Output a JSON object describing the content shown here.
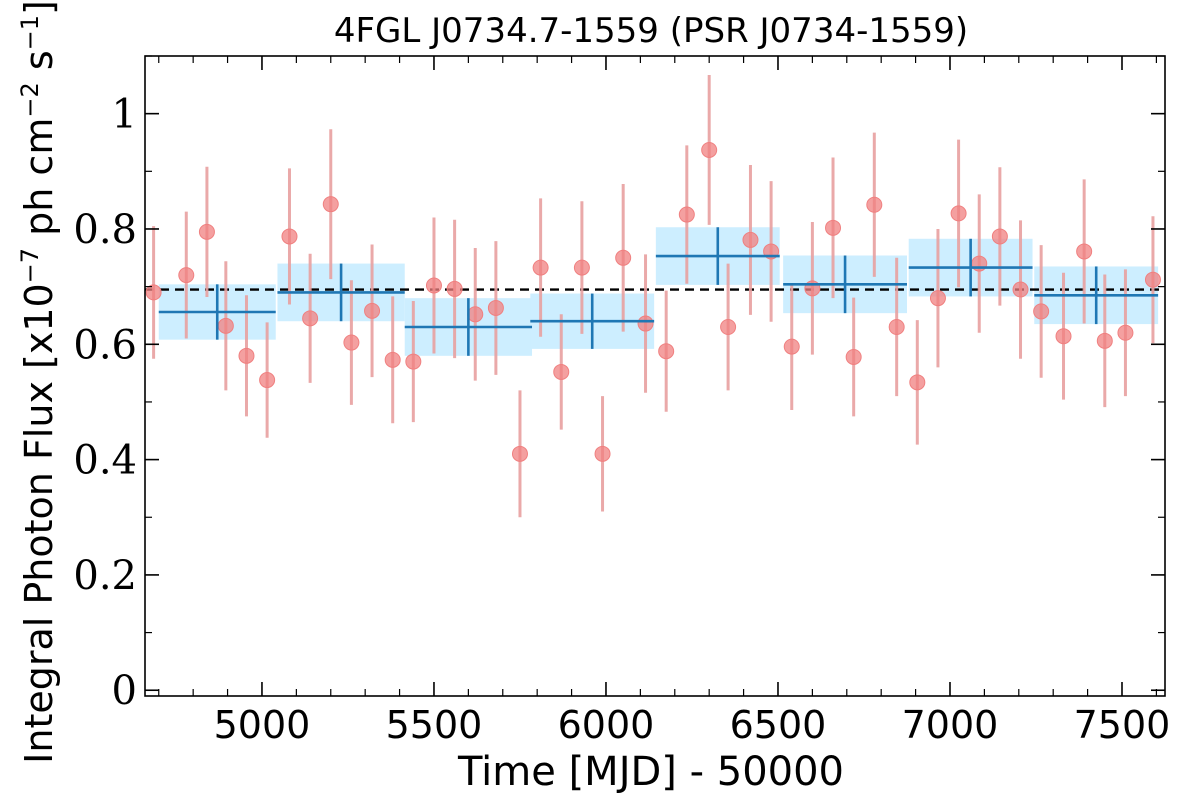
{
  "chart_data": {
    "type": "scatter",
    "title": "4FGL J0734.7-1559 (PSR J0734-1559)",
    "xlabel": "Time [MJD] - 50000",
    "ylabel_parts": {
      "prefix": "Integral Photon Flux [x10",
      "exp1": "−7",
      "mid": " ph cm",
      "exp2": "−2",
      "mid2": " s",
      "exp3": "−1",
      "suffix": "]"
    },
    "xlim": [
      4660,
      7625
    ],
    "ylim": [
      -0.01,
      1.1
    ],
    "xticks": [
      5000,
      5500,
      6000,
      6500,
      7000,
      7500
    ],
    "xtick_labels": [
      "5000",
      "5500",
      "6000",
      "6500",
      "7000",
      "7500"
    ],
    "yticks": [
      0,
      0.2,
      0.4,
      0.6,
      0.8,
      1.0
    ],
    "ytick_labels": [
      "0",
      "0.2",
      "0.4",
      "0.6",
      "0.8",
      "1"
    ],
    "mean_flux": 0.695,
    "colors": {
      "points": "#f08080",
      "point_errorbars": "#e8a0a0",
      "bins": "#1f77b4",
      "bin_bands": "#cdeeff",
      "mean_line": "#000000"
    },
    "series": [
      {
        "kind": "short-bins",
        "x": [
          4685,
          4780,
          4840,
          4895,
          4955,
          5015,
          5080,
          5140,
          5200,
          5260,
          5320,
          5380,
          5440,
          5500,
          5560,
          5620,
          5680,
          5750,
          5810,
          5870,
          5930,
          5990,
          6050,
          6115,
          6175,
          6235,
          6300,
          6355,
          6420,
          6480,
          6540,
          6600,
          6660,
          6720,
          6780,
          6845,
          6905,
          6965,
          7025,
          7085,
          7145,
          7205,
          7265,
          7330,
          7390,
          7450,
          7510,
          7590
        ],
        "y": [
          0.69,
          0.72,
          0.795,
          0.632,
          0.58,
          0.538,
          0.787,
          0.645,
          0.843,
          0.603,
          0.658,
          0.573,
          0.57,
          0.702,
          0.696,
          0.652,
          0.663,
          0.41,
          0.733,
          0.552,
          0.733,
          0.41,
          0.75,
          0.636,
          0.588,
          0.825,
          0.937,
          0.63,
          0.781,
          0.761,
          0.596,
          0.697,
          0.802,
          0.578,
          0.842,
          0.63,
          0.534,
          0.68,
          0.827,
          0.74,
          0.787,
          0.695,
          0.657,
          0.614,
          0.761,
          0.606,
          0.62,
          0.712
        ],
        "yerr": [
          0.115,
          0.11,
          0.113,
          0.112,
          0.105,
          0.1,
          0.118,
          0.112,
          0.13,
          0.108,
          0.115,
          0.11,
          0.105,
          0.118,
          0.12,
          0.115,
          0.116,
          0.11,
          0.12,
          0.1,
          0.115,
          0.1,
          0.128,
          0.12,
          0.105,
          0.12,
          0.13,
          0.11,
          0.13,
          0.122,
          0.11,
          0.115,
          0.122,
          0.103,
          0.125,
          0.12,
          0.108,
          0.12,
          0.128,
          0.12,
          0.12,
          0.12,
          0.115,
          0.11,
          0.125,
          0.115,
          0.11,
          0.11
        ]
      },
      {
        "kind": "long-bins",
        "x": [
          4870,
          5230,
          5600,
          5960,
          6325,
          6695,
          7060,
          7425
        ],
        "y": [
          0.656,
          0.69,
          0.63,
          0.64,
          0.753,
          0.704,
          0.733,
          0.685
        ],
        "xerr": [
          170,
          185,
          185,
          180,
          180,
          180,
          180,
          180
        ],
        "yerr": [
          0.048,
          0.05,
          0.05,
          0.048,
          0.05,
          0.05,
          0.05,
          0.05
        ]
      }
    ]
  }
}
